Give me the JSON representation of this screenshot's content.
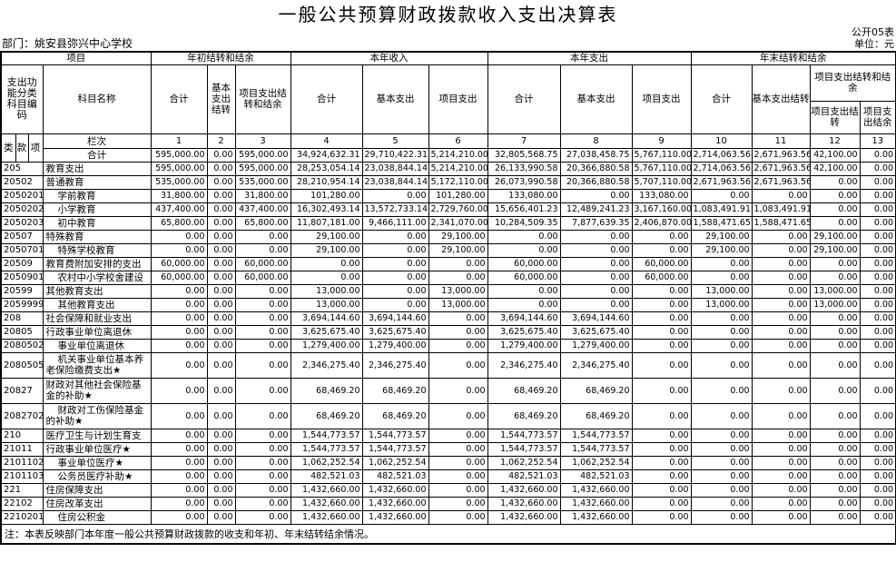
{
  "page": {
    "title": "一般公共预算财政拨款收入支出决算表",
    "table_code": "公开05表",
    "unit_label": "单位：元",
    "department_label": "部门：姚安县弥兴中心学校",
    "note": "注：本表反映部门本年度一般公共预算财政拨款的收支和年初、年末结转结余情况。"
  },
  "header": {
    "group_project": "项目",
    "group_begin_balance": "年初结转和结余",
    "group_current_income": "本年收入",
    "group_current_expenditure": "本年支出",
    "group_end_balance": "年末结转和结余",
    "code": "支出功能分类科目编码",
    "subject": "科目名称",
    "begin_total": "合计",
    "begin_basic": "基本支出结转",
    "begin_project": "项目支出结转和结余",
    "income_total": "合计",
    "income_basic": "基本支出",
    "income_project": "项目支出",
    "expend_total": "合计",
    "expend_basic": "基本支出",
    "expend_project": "项目支出",
    "end_total": "合计",
    "end_basic": "基本支出结转",
    "end_project_group": "项目支出结转和结余",
    "end_project_carry": "项目支出结转",
    "end_project_balance": "项目支出结余",
    "lei": "类",
    "kuan": "款",
    "xiang": "项",
    "lanci": "栏次",
    "col_numbers": [
      "1",
      "2",
      "3",
      "4",
      "5",
      "6",
      "7",
      "8",
      "9",
      "10",
      "11",
      "12",
      "13"
    ]
  },
  "rows": [
    {
      "code": "",
      "name": "合计",
      "indent": false,
      "tall": false,
      "values": [
        "595,000.00",
        "0.00",
        "595,000.00",
        "34,924,632.31",
        "29,710,422.31",
        "5,214,210.00",
        "32,805,568.75",
        "27,038,458.75",
        "5,767,110.00",
        "2,714,063.56",
        "2,671,963.56",
        "42,100.00",
        "0.00"
      ]
    },
    {
      "code": "205",
      "name": "教育支出",
      "indent": false,
      "tall": false,
      "values": [
        "595,000.00",
        "0.00",
        "595,000.00",
        "28,253,054.14",
        "23,038,844.14",
        "5,214,210.00",
        "26,133,990.58",
        "20,366,880.58",
        "5,767,110.00",
        "2,714,063.56",
        "2,671,963.56",
        "42,100.00",
        "0.00"
      ]
    },
    {
      "code": "20502",
      "name": "普通教育",
      "indent": false,
      "tall": false,
      "values": [
        "535,000.00",
        "0.00",
        "535,000.00",
        "28,210,954.14",
        "23,038,844.14",
        "5,172,110.00",
        "26,073,990.58",
        "20,366,880.58",
        "5,707,110.00",
        "2,671,963.56",
        "2,671,963.56",
        "0.00",
        "0.00"
      ]
    },
    {
      "code": "2050201",
      "name": "学前教育",
      "indent": true,
      "tall": false,
      "values": [
        "31,800.00",
        "0.00",
        "31,800.00",
        "101,280.00",
        "0.00",
        "101,280.00",
        "133,080.00",
        "0.00",
        "133,080.00",
        "0.00",
        "0.00",
        "0.00",
        "0.00"
      ]
    },
    {
      "code": "2050202",
      "name": "小学教育",
      "indent": true,
      "tall": false,
      "values": [
        "437,400.00",
        "0.00",
        "437,400.00",
        "16,302,493.14",
        "13,572,733.14",
        "2,729,760.00",
        "15,656,401.23",
        "12,489,241.23",
        "3,167,160.00",
        "1,083,491.91",
        "1,083,491.91",
        "0.00",
        "0.00"
      ]
    },
    {
      "code": "2050203",
      "name": "初中教育",
      "indent": true,
      "tall": false,
      "values": [
        "65,800.00",
        "0.00",
        "65,800.00",
        "11,807,181.00",
        "9,466,111.00",
        "2,341,070.00",
        "10,284,509.35",
        "7,877,639.35",
        "2,406,870.00",
        "1,588,471.65",
        "1,588,471.65",
        "0.00",
        "0.00"
      ]
    },
    {
      "code": "20507",
      "name": "特殊教育",
      "indent": false,
      "tall": false,
      "values": [
        "0.00",
        "0.00",
        "0.00",
        "29,100.00",
        "0.00",
        "29,100.00",
        "0.00",
        "0.00",
        "0.00",
        "29,100.00",
        "0.00",
        "29,100.00",
        "0.00"
      ]
    },
    {
      "code": "2050701",
      "name": "特殊学校教育",
      "indent": true,
      "tall": false,
      "values": [
        "0.00",
        "0.00",
        "0.00",
        "29,100.00",
        "0.00",
        "29,100.00",
        "0.00",
        "0.00",
        "0.00",
        "29,100.00",
        "0.00",
        "29,100.00",
        "0.00"
      ]
    },
    {
      "code": "20509",
      "name": "教育费附加安排的支出",
      "indent": false,
      "tall": false,
      "values": [
        "60,000.00",
        "0.00",
        "60,000.00",
        "0.00",
        "0.00",
        "0.00",
        "60,000.00",
        "0.00",
        "60,000.00",
        "0.00",
        "0.00",
        "0.00",
        "0.00"
      ]
    },
    {
      "code": "2050901",
      "name": "农村中小学校舍建设",
      "indent": true,
      "tall": false,
      "values": [
        "60,000.00",
        "0.00",
        "60,000.00",
        "0.00",
        "0.00",
        "0.00",
        "60,000.00",
        "0.00",
        "60,000.00",
        "0.00",
        "0.00",
        "0.00",
        "0.00"
      ]
    },
    {
      "code": "20599",
      "name": "其他教育支出",
      "indent": false,
      "tall": false,
      "values": [
        "0.00",
        "0.00",
        "0.00",
        "13,000.00",
        "0.00",
        "13,000.00",
        "0.00",
        "0.00",
        "0.00",
        "13,000.00",
        "0.00",
        "13,000.00",
        "0.00"
      ]
    },
    {
      "code": "2059999",
      "name": "其他教育支出",
      "indent": true,
      "tall": false,
      "values": [
        "0.00",
        "0.00",
        "0.00",
        "13,000.00",
        "0.00",
        "13,000.00",
        "0.00",
        "0.00",
        "0.00",
        "13,000.00",
        "0.00",
        "13,000.00",
        "0.00"
      ]
    },
    {
      "code": "208",
      "name": "社会保障和就业支出",
      "indent": false,
      "tall": false,
      "values": [
        "0.00",
        "0.00",
        "0.00",
        "3,694,144.60",
        "3,694,144.60",
        "0.00",
        "3,694,144.60",
        "3,694,144.60",
        "0.00",
        "0.00",
        "0.00",
        "0.00",
        "0.00"
      ]
    },
    {
      "code": "20805",
      "name": "行政事业单位离退休",
      "indent": false,
      "tall": false,
      "values": [
        "0.00",
        "0.00",
        "0.00",
        "3,625,675.40",
        "3,625,675.40",
        "0.00",
        "3,625,675.40",
        "3,625,675.40",
        "0.00",
        "0.00",
        "0.00",
        "0.00",
        "0.00"
      ]
    },
    {
      "code": "2080502",
      "name": "事业单位离退休",
      "indent": true,
      "tall": false,
      "values": [
        "0.00",
        "0.00",
        "0.00",
        "1,279,400.00",
        "1,279,400.00",
        "0.00",
        "1,279,400.00",
        "1,279,400.00",
        "0.00",
        "0.00",
        "0.00",
        "0.00",
        "0.00"
      ]
    },
    {
      "code": "2080505",
      "name": "机关事业单位基本养老保险缴费支出★",
      "indent": true,
      "tall": true,
      "values": [
        "0.00",
        "0.00",
        "0.00",
        "2,346,275.40",
        "2,346,275.40",
        "0.00",
        "2,346,275.40",
        "2,346,275.40",
        "0.00",
        "0.00",
        "0.00",
        "0.00",
        "0.00"
      ]
    },
    {
      "code": "20827",
      "name": "财政对其他社会保险基金的补助★",
      "indent": false,
      "tall": true,
      "values": [
        "0.00",
        "0.00",
        "0.00",
        "68,469.20",
        "68,469.20",
        "0.00",
        "68,469.20",
        "68,469.20",
        "0.00",
        "0.00",
        "0.00",
        "0.00",
        "0.00"
      ]
    },
    {
      "code": "2082702",
      "name": "财政对工伤保险基金的补助★",
      "indent": true,
      "tall": true,
      "values": [
        "0.00",
        "0.00",
        "0.00",
        "68,469.20",
        "68,469.20",
        "0.00",
        "68,469.20",
        "68,469.20",
        "0.00",
        "0.00",
        "0.00",
        "0.00",
        "0.00"
      ]
    },
    {
      "code": "210",
      "name": "医疗卫生与计划生育支",
      "indent": false,
      "tall": false,
      "values": [
        "0.00",
        "0.00",
        "0.00",
        "1,544,773.57",
        "1,544,773.57",
        "0.00",
        "1,544,773.57",
        "1,544,773.57",
        "0.00",
        "0.00",
        "0.00",
        "0.00",
        "0.00"
      ]
    },
    {
      "code": "21011",
      "name": "行政事业单位医疗★",
      "indent": false,
      "tall": false,
      "values": [
        "0.00",
        "0.00",
        "0.00",
        "1,544,773.57",
        "1,544,773.57",
        "0.00",
        "1,544,773.57",
        "1,544,773.57",
        "0.00",
        "0.00",
        "0.00",
        "0.00",
        "0.00"
      ]
    },
    {
      "code": "2101102",
      "name": "事业单位医疗★",
      "indent": true,
      "tall": false,
      "values": [
        "0.00",
        "0.00",
        "0.00",
        "1,062,252.54",
        "1,062,252.54",
        "0.00",
        "1,062,252.54",
        "1,062,252.54",
        "0.00",
        "0.00",
        "0.00",
        "0.00",
        "0.00"
      ]
    },
    {
      "code": "2101103",
      "name": "公务员医疗补助★",
      "indent": true,
      "tall": false,
      "values": [
        "0.00",
        "0.00",
        "0.00",
        "482,521.03",
        "482,521.03",
        "0.00",
        "482,521.03",
        "482,521.03",
        "0.00",
        "0.00",
        "0.00",
        "0.00",
        "0.00"
      ]
    },
    {
      "code": "221",
      "name": "住房保障支出",
      "indent": false,
      "tall": false,
      "values": [
        "0.00",
        "0.00",
        "0.00",
        "1,432,660.00",
        "1,432,660.00",
        "0.00",
        "1,432,660.00",
        "1,432,660.00",
        "0.00",
        "0.00",
        "0.00",
        "0.00",
        "0.00"
      ]
    },
    {
      "code": "22102",
      "name": "住房改革支出",
      "indent": false,
      "tall": false,
      "values": [
        "0.00",
        "0.00",
        "0.00",
        "1,432,660.00",
        "1,432,660.00",
        "0.00",
        "1,432,660.00",
        "1,432,660.00",
        "0.00",
        "0.00",
        "0.00",
        "0.00",
        "0.00"
      ]
    },
    {
      "code": "2210201",
      "name": "住房公积金",
      "indent": true,
      "tall": false,
      "values": [
        "0.00",
        "0.00",
        "0.00",
        "1,432,660.00",
        "1,432,660.00",
        "0.00",
        "1,432,660.00",
        "1,432,660.00",
        "0.00",
        "0.00",
        "0.00",
        "0.00",
        "0.00"
      ]
    }
  ]
}
